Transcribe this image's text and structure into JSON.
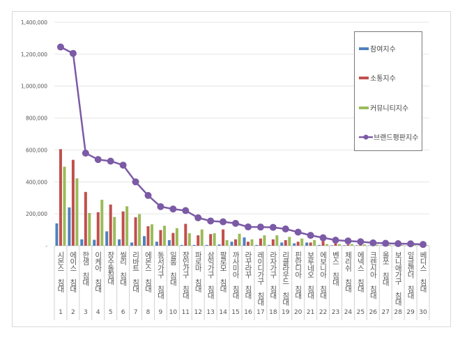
{
  "chart_data": {
    "type": "bar+line",
    "title": "",
    "xlabel": "",
    "ylabel": "",
    "ylim": [
      0,
      1400000
    ],
    "yticks": [
      "-",
      "200,000",
      "400,000",
      "600,000",
      "800,000",
      "1,000,000",
      "1,200,000",
      "1,400,000"
    ],
    "grid": true,
    "legend_position": "top-right",
    "categories": [
      "시몬스 침대",
      "에이스 침대",
      "한샘 침대",
      "이케아 침대",
      "장수돌침대",
      "씰리 침대",
      "리바트 침대",
      "에몬스 침대",
      "동서가구 침대",
      "일룸 침대",
      "장인가구 침대",
      "파로마 침대",
      "삼익가구 침대",
      "팔로모 침대",
      "까사미아 침대",
      "라꾸라꾸 침대",
      "레이디가구 침대",
      "라자가구 침대",
      "리클라우드 침대",
      "핀란디아 침대",
      "보루네오 침대",
      "에보니아 침대",
      "벤스 침대",
      "체리쉬 침대",
      "에넥스 침대",
      "크렌시아 침대",
      "올쏘 침대",
      "보니애가구 침대",
      "잉글랜더 침대",
      "베디스 침대"
    ],
    "ranks": [
      "1",
      "2",
      "3",
      "4",
      "5",
      "6",
      "7",
      "8",
      "9",
      "10",
      "11",
      "12",
      "13",
      "14",
      "15",
      "16",
      "17",
      "18",
      "19",
      "20",
      "21",
      "22",
      "23",
      "24",
      "25",
      "26",
      "27",
      "28",
      "29",
      "30"
    ],
    "series": [
      {
        "name": "참여지수",
        "kind": "bar",
        "color": "#4f81bd",
        "values": [
          140000,
          240000,
          40000,
          37000,
          90000,
          40000,
          20000,
          60000,
          25000,
          35000,
          5000,
          5000,
          5000,
          8000,
          25000,
          52000,
          5000,
          5000,
          20000,
          15000,
          20000,
          5000,
          3000,
          3000,
          3000,
          2000,
          2000,
          1000,
          1000,
          1000
        ]
      },
      {
        "name": "소통지수",
        "kind": "bar",
        "color": "#c0504d",
        "values": [
          605000,
          538000,
          337000,
          210000,
          258000,
          215000,
          178000,
          122000,
          98000,
          80000,
          137000,
          65000,
          73000,
          102000,
          40000,
          25000,
          45000,
          40000,
          35000,
          25000,
          20000,
          30000,
          15000,
          8000,
          8000,
          6000,
          5000,
          4000,
          4000,
          3000
        ]
      },
      {
        "name": "커뮤니티지수",
        "kind": "bar",
        "color": "#9bbb59",
        "values": [
          495000,
          422000,
          205000,
          288000,
          180000,
          247000,
          198000,
          134000,
          125000,
          110000,
          78000,
          102000,
          78000,
          35000,
          75000,
          40000,
          65000,
          65000,
          55000,
          45000,
          35000,
          10000,
          10000,
          10000,
          8000,
          6000,
          5000,
          5000,
          4000,
          3000
        ]
      },
      {
        "name": "브랜드평판지수",
        "kind": "line",
        "color": "#7b5aa6",
        "values": [
          1245000,
          1205000,
          580000,
          540000,
          530000,
          505000,
          400000,
          315000,
          245000,
          230000,
          220000,
          175000,
          155000,
          150000,
          140000,
          118000,
          117000,
          115000,
          105000,
          85000,
          65000,
          50000,
          35000,
          30000,
          25000,
          18000,
          15000,
          13000,
          12000,
          8000
        ]
      }
    ]
  }
}
